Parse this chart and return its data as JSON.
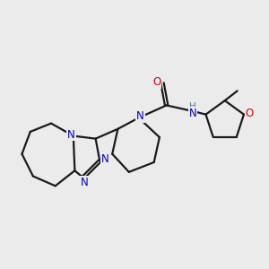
{
  "background_color": "#ebebeb",
  "bond_color": "#1a1a1a",
  "N_color": "#0000cc",
  "O_color": "#cc0000",
  "H_color": "#4a7f7f",
  "bond_width": 1.6,
  "figsize": [
    3.0,
    3.0
  ],
  "dpi": 100,
  "xlim": [
    0.0,
    9.5
  ],
  "ylim": [
    1.5,
    9.0
  ]
}
